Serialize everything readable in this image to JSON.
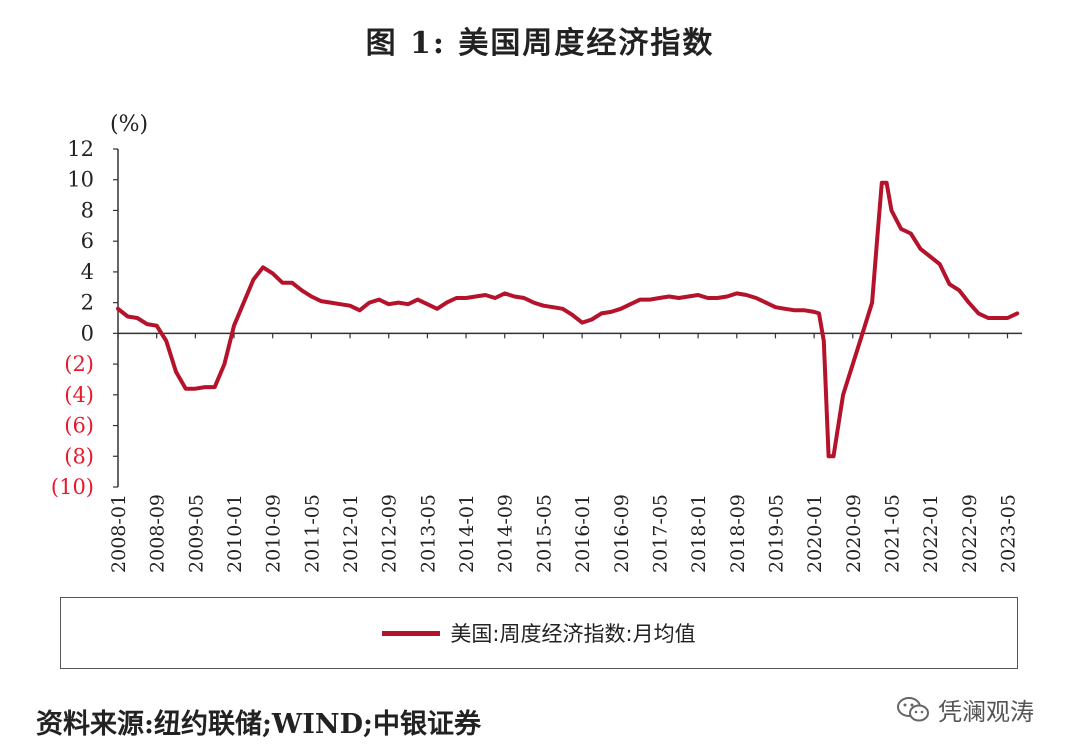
{
  "figure_title": "图 1: 美国周度经济指数",
  "source_note": "资料来源:纽约联储;WIND;中银证券",
  "watermark": "凭澜观涛",
  "colors": {
    "line": "#b5122b",
    "negative_tick": "#e8192c",
    "text": "#222222"
  },
  "chart_data": {
    "type": "line",
    "title": "图 1: 美国周度经济指数",
    "ylabel": "(%)",
    "ylim": [
      -10,
      12
    ],
    "y_ticks": [
      12,
      10,
      8,
      6,
      4,
      2,
      0,
      -2,
      -4,
      -6,
      -8,
      -10
    ],
    "y_tick_labels": [
      "12",
      "10",
      "8",
      "6",
      "4",
      "2",
      "0",
      "(2)",
      "(4)",
      "(6)",
      "(8)",
      "(10)"
    ],
    "x_tick_labels": [
      "2008-01",
      "2008-09",
      "2009-05",
      "2010-01",
      "2010-09",
      "2011-05",
      "2012-01",
      "2012-09",
      "2013-05",
      "2014-01",
      "2014-09",
      "2015-05",
      "2016-01",
      "2016-09",
      "2017-05",
      "2018-01",
      "2018-09",
      "2019-05",
      "2020-01",
      "2020-09",
      "2021-05",
      "2022-01",
      "2022-09",
      "2023-05"
    ],
    "legend": [
      "美国:周度经济指数:月均值"
    ],
    "legend_position": "bottom",
    "grid": false,
    "series": [
      {
        "name": "美国:周度经济指数:月均值",
        "x": [
          "2008-01",
          "2008-03",
          "2008-05",
          "2008-07",
          "2008-09",
          "2008-11",
          "2009-01",
          "2009-03",
          "2009-05",
          "2009-07",
          "2009-09",
          "2009-11",
          "2010-01",
          "2010-03",
          "2010-05",
          "2010-07",
          "2010-09",
          "2010-11",
          "2011-01",
          "2011-03",
          "2011-05",
          "2011-07",
          "2011-09",
          "2011-11",
          "2012-01",
          "2012-03",
          "2012-05",
          "2012-07",
          "2012-09",
          "2012-11",
          "2013-01",
          "2013-03",
          "2013-05",
          "2013-07",
          "2013-09",
          "2013-11",
          "2014-01",
          "2014-03",
          "2014-05",
          "2014-07",
          "2014-09",
          "2014-11",
          "2015-01",
          "2015-03",
          "2015-05",
          "2015-07",
          "2015-09",
          "2015-11",
          "2016-01",
          "2016-03",
          "2016-05",
          "2016-07",
          "2016-09",
          "2016-11",
          "2017-01",
          "2017-03",
          "2017-05",
          "2017-07",
          "2017-09",
          "2017-11",
          "2018-01",
          "2018-03",
          "2018-05",
          "2018-07",
          "2018-09",
          "2018-11",
          "2019-01",
          "2019-03",
          "2019-05",
          "2019-07",
          "2019-09",
          "2019-11",
          "2020-01",
          "2020-02",
          "2020-03",
          "2020-04",
          "2020-05",
          "2020-06",
          "2020-07",
          "2020-09",
          "2020-11",
          "2021-01",
          "2021-02",
          "2021-03",
          "2021-04",
          "2021-05",
          "2021-07",
          "2021-09",
          "2021-11",
          "2022-01",
          "2022-03",
          "2022-05",
          "2022-07",
          "2022-09",
          "2022-11",
          "2023-01",
          "2023-03",
          "2023-05",
          "2023-07"
        ],
        "y": [
          1.6,
          1.1,
          1.0,
          0.6,
          0.5,
          -0.5,
          -2.5,
          -3.6,
          -3.6,
          -3.5,
          -3.5,
          -2.0,
          0.5,
          2.0,
          3.5,
          4.3,
          3.9,
          3.3,
          3.3,
          2.8,
          2.4,
          2.1,
          2.0,
          1.9,
          1.8,
          1.5,
          2.0,
          2.2,
          1.9,
          2.0,
          1.9,
          2.2,
          1.9,
          1.6,
          2.0,
          2.3,
          2.3,
          2.4,
          2.5,
          2.3,
          2.6,
          2.4,
          2.3,
          2.0,
          1.8,
          1.7,
          1.6,
          1.2,
          0.7,
          0.9,
          1.3,
          1.4,
          1.6,
          1.9,
          2.2,
          2.2,
          2.3,
          2.4,
          2.3,
          2.4,
          2.5,
          2.3,
          2.3,
          2.4,
          2.6,
          2.5,
          2.3,
          2.0,
          1.7,
          1.6,
          1.5,
          1.5,
          1.4,
          1.3,
          -0.5,
          -8.0,
          -8.0,
          -6.0,
          -4.0,
          -2.0,
          0.0,
          2.0,
          6.0,
          9.8,
          9.8,
          8.0,
          6.8,
          6.5,
          5.5,
          5.0,
          4.5,
          3.2,
          2.8,
          2.0,
          1.3,
          1.0,
          1.0,
          1.0,
          1.3
        ]
      }
    ]
  }
}
